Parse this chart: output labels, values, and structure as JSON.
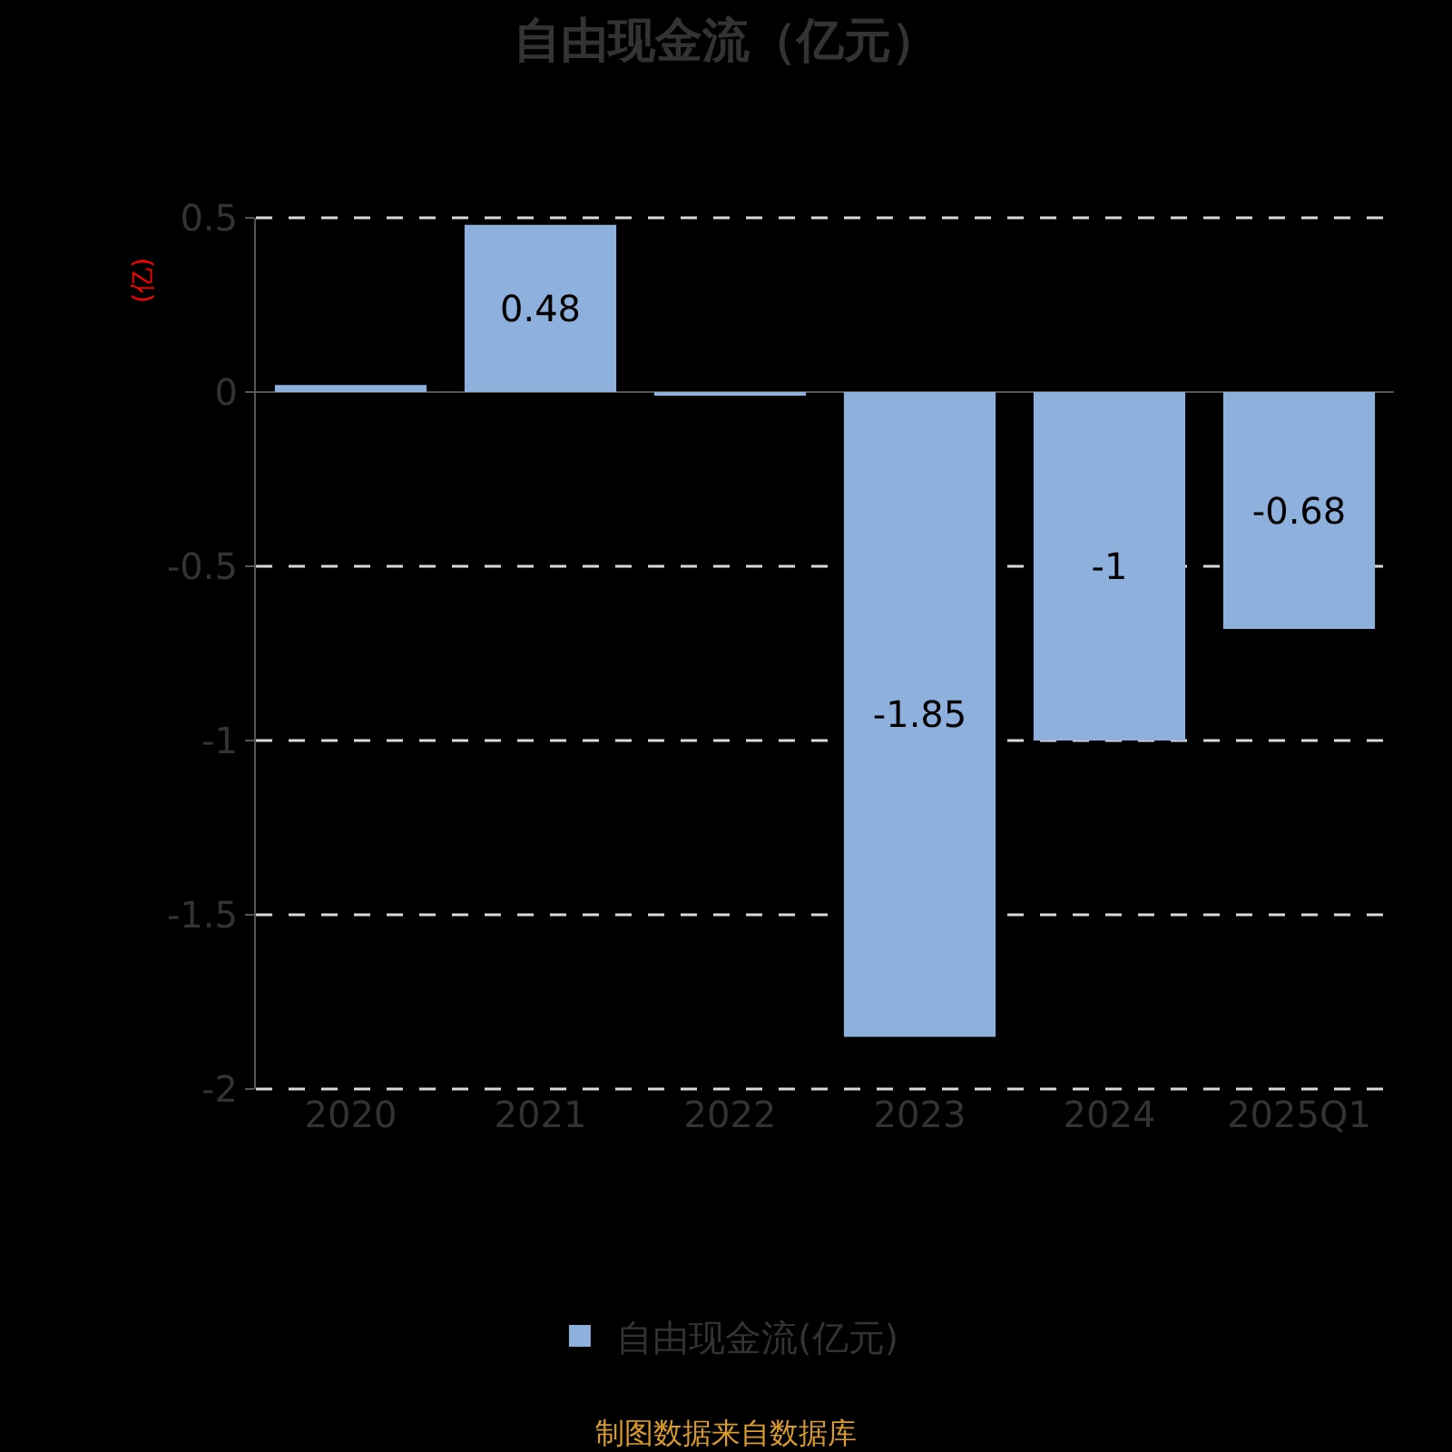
{
  "chart_data": {
    "type": "bar",
    "title": "自由现金流（亿元）",
    "ylabel": "(亿)",
    "categories": [
      "2020",
      "2021",
      "2022",
      "2023",
      "2024",
      "2025Q1"
    ],
    "series": [
      {
        "name": "自由现金流(亿元)",
        "color": "#8eb0dd",
        "values": [
          0.02,
          0.48,
          -0.01,
          -1.85,
          -1,
          -0.68
        ],
        "value_labels": [
          null,
          "0.48",
          null,
          "-1.85",
          "-1",
          "-0.68"
        ]
      }
    ],
    "ylim": [
      -2,
      0.5
    ],
    "yticks": [
      0.5,
      0,
      -0.5,
      -1,
      -1.5,
      -2
    ],
    "grid": "y",
    "legend": "bottom",
    "annotations": [
      "制图数据来自数据库"
    ]
  }
}
